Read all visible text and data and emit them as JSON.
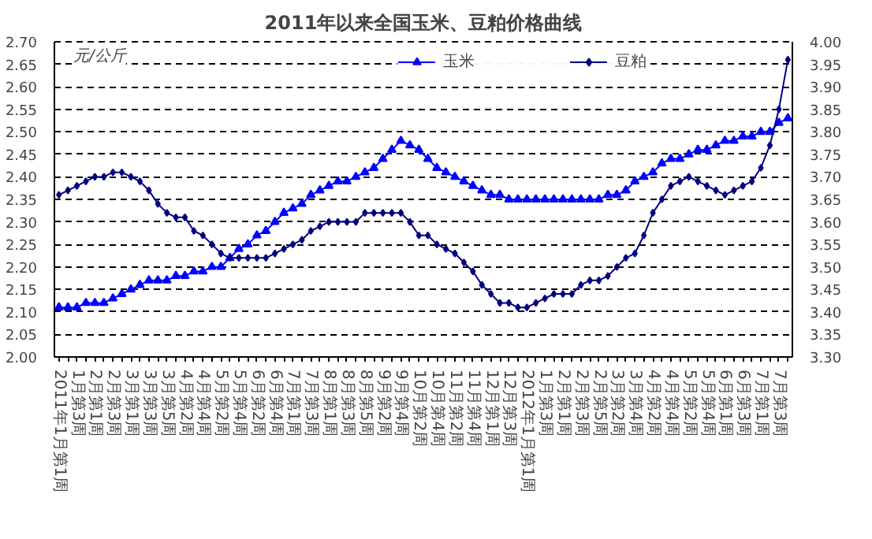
{
  "chart_data": {
    "type": "line",
    "title": "2011年以来全国玉米、豆粕价格曲线",
    "ylabel": "元/公斤",
    "categories": [
      "2011年1月第1周",
      null,
      "1月第3周",
      null,
      "2月第1周",
      null,
      "2月第3周",
      null,
      "3月第1周",
      null,
      "3月第3周",
      null,
      "3月第5周",
      null,
      "4月第2周",
      null,
      "4月第4周",
      null,
      "5月第2周",
      null,
      "5月第4周",
      null,
      "6月第2周",
      null,
      "6月第4周",
      null,
      "7月第1周",
      null,
      "7月第3周",
      null,
      "8月第1周",
      null,
      "8月第3周",
      null,
      "8月第5周",
      null,
      "9月第2周",
      null,
      "9月第4周",
      null,
      "10月第2周",
      null,
      "10月第4周",
      null,
      "11月第2周",
      null,
      "11月第4周",
      null,
      "12月第1周",
      null,
      "12月第3周",
      null,
      "2012年1月第1周",
      null,
      "1月第3周",
      null,
      "2月第1周",
      null,
      "2月第3周",
      null,
      "2月第5周",
      null,
      "3月第2周",
      null,
      "3月第4周",
      null,
      "4月第2周",
      null,
      "4月第4周",
      null,
      "5月第2周",
      null,
      "5月第4周",
      null,
      "6月第1周",
      null,
      "6月第3周",
      null,
      "7月第1周",
      null,
      "7月第3周",
      null
    ],
    "series": [
      {
        "name": "玉米",
        "color": "#0000ff",
        "marker": "triangle",
        "values": [
          2.11,
          2.11,
          2.11,
          2.12,
          2.12,
          2.12,
          2.13,
          2.14,
          2.15,
          2.16,
          2.17,
          2.17,
          2.17,
          2.18,
          2.18,
          2.19,
          2.19,
          2.2,
          2.2,
          2.22,
          2.24,
          2.25,
          2.27,
          2.28,
          2.3,
          2.32,
          2.33,
          2.34,
          2.36,
          2.37,
          2.38,
          2.39,
          2.39,
          2.4,
          2.41,
          2.42,
          2.44,
          2.46,
          2.48,
          2.47,
          2.46,
          2.44,
          2.42,
          2.41,
          2.4,
          2.39,
          2.38,
          2.37,
          2.36,
          2.36,
          2.35,
          2.35,
          2.35,
          2.35,
          2.35,
          2.35,
          2.35,
          2.35,
          2.35,
          2.35,
          2.35,
          2.36,
          2.36,
          2.37,
          2.39,
          2.4,
          2.41,
          2.43,
          2.44,
          2.44,
          2.45,
          2.46,
          2.46,
          2.47,
          2.48,
          2.48,
          2.49,
          2.49,
          2.5,
          2.5,
          2.52,
          2.53
        ]
      },
      {
        "name": "豆粕",
        "color": "#000080",
        "marker": "diamond",
        "axis": "y2",
        "values": [
          3.66,
          3.67,
          3.68,
          3.69,
          3.7,
          3.7,
          3.71,
          3.71,
          3.7,
          3.69,
          3.67,
          3.64,
          3.62,
          3.61,
          3.61,
          3.58,
          3.57,
          3.55,
          3.53,
          3.52,
          3.52,
          3.52,
          3.52,
          3.52,
          3.53,
          3.54,
          3.55,
          3.56,
          3.58,
          3.59,
          3.6,
          3.6,
          3.6,
          3.6,
          3.62,
          3.62,
          3.62,
          3.62,
          3.62,
          3.6,
          3.57,
          3.57,
          3.55,
          3.54,
          3.53,
          3.51,
          3.49,
          3.46,
          3.44,
          3.42,
          3.42,
          3.41,
          3.41,
          3.42,
          3.43,
          3.44,
          3.44,
          3.44,
          3.46,
          3.47,
          3.47,
          3.48,
          3.5,
          3.52,
          3.53,
          3.57,
          3.62,
          3.65,
          3.68,
          3.69,
          3.7,
          3.69,
          3.68,
          3.67,
          3.66,
          3.67,
          3.68,
          3.69,
          3.72,
          3.77,
          3.85,
          3.96
        ]
      }
    ],
    "ylim": [
      2.0,
      2.7
    ],
    "yticks": [
      {
        "value": 2.0,
        "label": "2.00"
      },
      2.05,
      {
        "value": 2.1,
        "label": "2.10"
      },
      2.15,
      {
        "value": 2.2,
        "label": "2.20"
      },
      2.25,
      {
        "value": 2.3,
        "label": "2.30"
      },
      2.35,
      {
        "value": 2.4,
        "label": "2.40"
      },
      2.45,
      {
        "value": 2.5,
        "label": "2.50"
      },
      2.55,
      {
        "value": 2.6,
        "label": "2.60"
      },
      2.65,
      {
        "value": 2.7,
        "label": "2.70"
      }
    ],
    "y2lim": [
      3.3,
      4.0
    ],
    "y2ticks": [
      {
        "value": 3.3,
        "label": "3.30"
      },
      3.35,
      {
        "value": 3.4,
        "label": "3.40"
      },
      3.45,
      {
        "value": 3.5,
        "label": "3.50"
      },
      3.55,
      {
        "value": 3.6,
        "label": "3.60"
      },
      3.65,
      {
        "value": 3.7,
        "label": "3.70"
      },
      3.75,
      {
        "value": 3.8,
        "label": "3.80"
      },
      3.85,
      {
        "value": 3.9,
        "label": "3.90"
      },
      3.95,
      {
        "value": 4.0,
        "label": "4.00"
      }
    ],
    "grid": "y",
    "legend": "top right"
  }
}
